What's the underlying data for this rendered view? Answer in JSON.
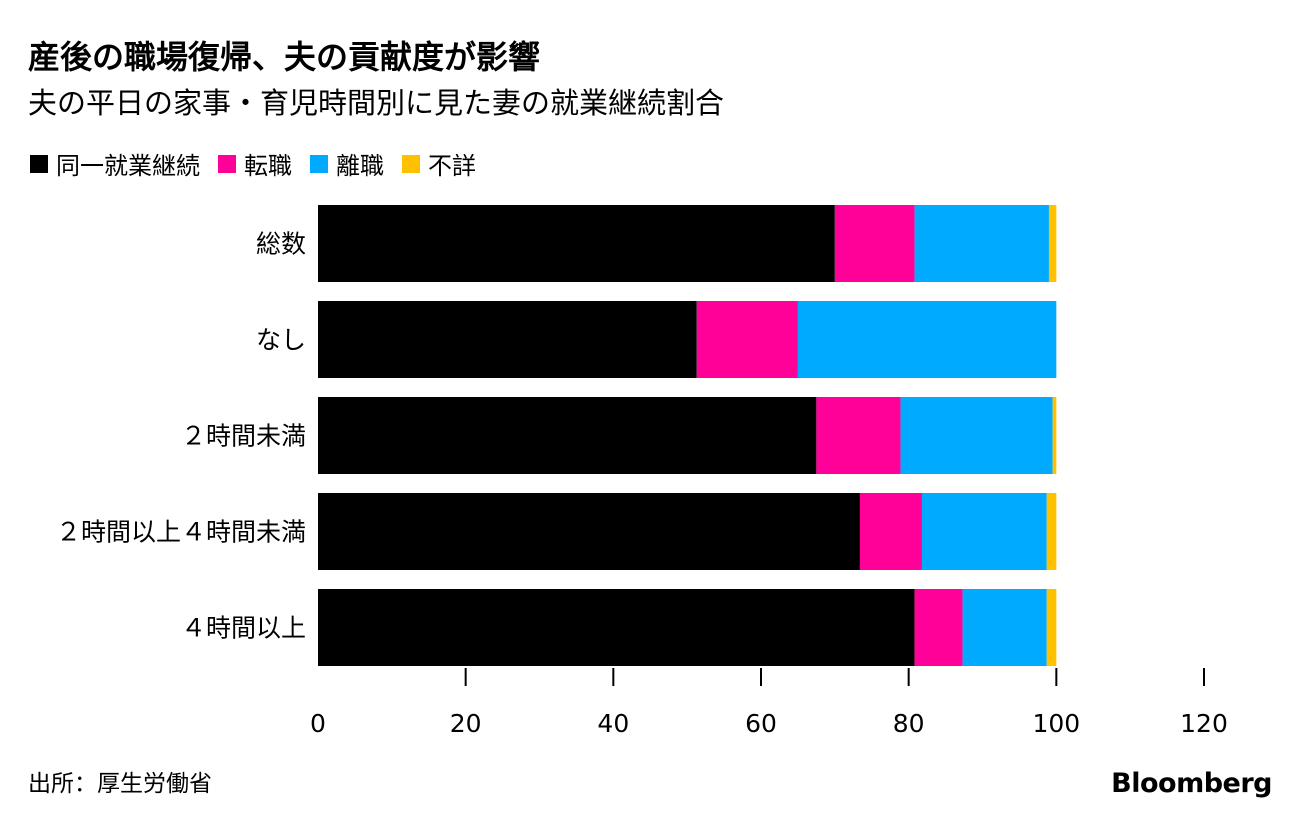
{
  "header": {
    "title": "産後の職場復帰、夫の貢献度が影響",
    "subtitle": "夫の平日の家事・育児時間別に見た妻の就業継続割合"
  },
  "legend": {
    "items": [
      {
        "label": "同一就業継続",
        "color": "#000000"
      },
      {
        "label": "転職",
        "color": "#ff0099"
      },
      {
        "label": "離職",
        "color": "#00aaff"
      },
      {
        "label": "不詳",
        "color": "#ffc000"
      }
    ]
  },
  "chart_data": {
    "type": "bar",
    "orientation": "horizontal",
    "stacked": true,
    "categories": [
      "総数",
      "なし",
      "２時間未満",
      "２時間以上４時間未満",
      "４時間以上"
    ],
    "series": [
      {
        "name": "同一就業継続",
        "color": "#000000",
        "values": [
          70.0,
          51.3,
          67.5,
          73.4,
          80.8
        ]
      },
      {
        "name": "転職",
        "color": "#ff0099",
        "values": [
          10.8,
          13.7,
          11.4,
          8.4,
          6.5
        ]
      },
      {
        "name": "離職",
        "color": "#00aaff",
        "values": [
          18.2,
          35.0,
          20.6,
          16.9,
          11.4
        ]
      },
      {
        "name": "不詳",
        "color": "#ffc000",
        "values": [
          1.0,
          0.0,
          0.5,
          1.3,
          1.3
        ]
      }
    ],
    "xlim": [
      0,
      120
    ],
    "xticks": [
      0,
      20,
      40,
      60,
      80,
      100,
      120
    ],
    "legend_position": "top-left",
    "grid": false
  },
  "footer": {
    "source": "出所：厚生労働省",
    "brand": "Bloomberg"
  }
}
